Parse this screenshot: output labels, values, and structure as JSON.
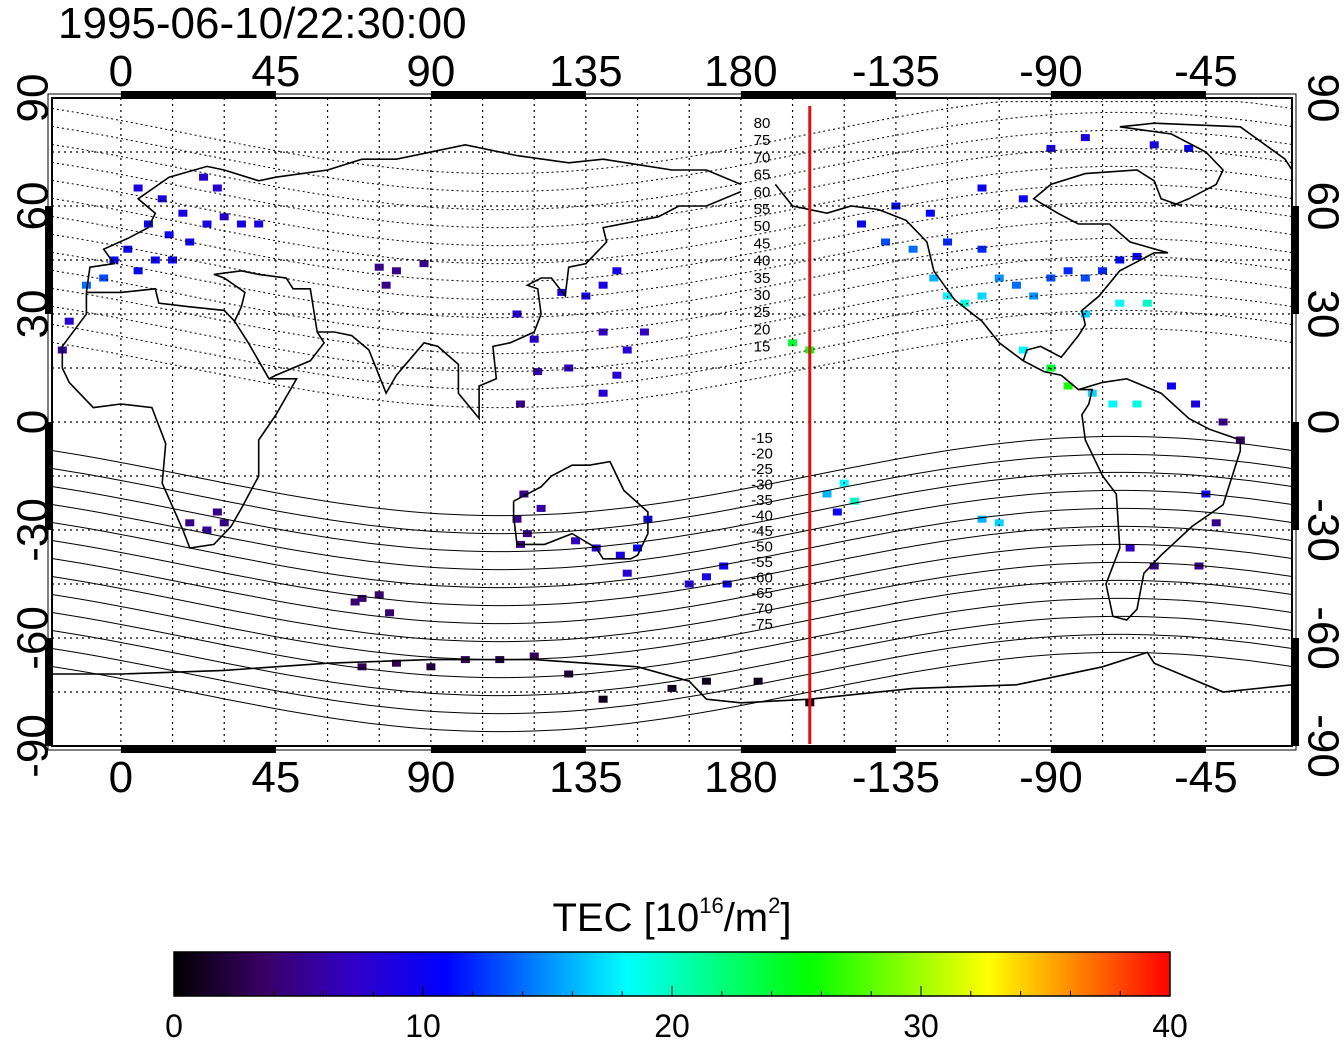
{
  "title": "1995-06-10/22:30:00",
  "map": {
    "top_lon_labels": [
      "0",
      "45",
      "90",
      "135",
      "180",
      "-135",
      "-90",
      "-45"
    ],
    "bottom_lon_labels": [
      "0",
      "45",
      "90",
      "135",
      "180",
      "-135",
      "-90",
      "-45"
    ],
    "left_lat_labels": [
      "90",
      "60",
      "30",
      "0",
      "-30",
      "-60",
      "-90"
    ],
    "right_lat_labels": [
      "90",
      "60",
      "30",
      "0",
      "-30",
      "-60",
      "-90"
    ],
    "contour_labels_north": [
      "80",
      "75",
      "70",
      "65",
      "60",
      "55",
      "50",
      "45",
      "40",
      "35",
      "30",
      "25",
      "20",
      "15"
    ],
    "contour_labels_south": [
      "-15",
      "-20",
      "-25",
      "-30",
      "-35",
      "-40",
      "-45",
      "-50",
      "-55",
      "-60",
      "-65",
      "-70",
      "-75"
    ],
    "red_line_lon": 200
  },
  "colorbar": {
    "label": "TEC  [10",
    "label_exp": "16",
    "label_unit": "/m",
    "label_unit_exp": "2",
    "label_end": "]",
    "ticks": [
      "0",
      "10",
      "20",
      "30",
      "40"
    ],
    "min": 0,
    "max": 40,
    "colors": [
      "#000000",
      "#3a0066",
      "#3000c8",
      "#0000ff",
      "#0080ff",
      "#00ffff",
      "#00ff80",
      "#00ff00",
      "#80ff00",
      "#ffff00",
      "#ff8000",
      "#ff0000"
    ]
  },
  "chart_data": {
    "type": "scatter",
    "title": "1995-06-10/22:30:00",
    "xlabel": "",
    "ylabel": "",
    "xlim": [
      -20,
      340
    ],
    "ylim": [
      -90,
      90
    ],
    "colorbar_label": "TEC [10^16/m^2]",
    "colorbar_range": [
      0,
      40
    ],
    "points": [
      {
        "lon": 5,
        "lat": 65,
        "tec": 9
      },
      {
        "lon": 12,
        "lat": 62,
        "tec": 9
      },
      {
        "lon": 18,
        "lat": 58,
        "tec": 9
      },
      {
        "lon": 8,
        "lat": 55,
        "tec": 10
      },
      {
        "lon": 14,
        "lat": 52,
        "tec": 10
      },
      {
        "lon": 20,
        "lat": 50,
        "tec": 10
      },
      {
        "lon": 25,
        "lat": 55,
        "tec": 9
      },
      {
        "lon": 30,
        "lat": 57,
        "tec": 8
      },
      {
        "lon": 35,
        "lat": 55,
        "tec": 9
      },
      {
        "lon": 40,
        "lat": 55,
        "tec": 9
      },
      {
        "lon": 2,
        "lat": 48,
        "tec": 10
      },
      {
        "lon": -2,
        "lat": 45,
        "tec": 11
      },
      {
        "lon": 5,
        "lat": 42,
        "tec": 11
      },
      {
        "lon": -5,
        "lat": 40,
        "tec": 13
      },
      {
        "lon": -10,
        "lat": 38,
        "tec": 14
      },
      {
        "lon": 10,
        "lat": 45,
        "tec": 10
      },
      {
        "lon": 15,
        "lat": 45,
        "tec": 10
      },
      {
        "lon": -15,
        "lat": 28,
        "tec": 8
      },
      {
        "lon": -17,
        "lat": 20,
        "tec": 6
      },
      {
        "lon": 24,
        "lat": 68,
        "tec": 8
      },
      {
        "lon": 28,
        "lat": 65,
        "tec": 8
      },
      {
        "lon": 75,
        "lat": 43,
        "tec": 5
      },
      {
        "lon": 80,
        "lat": 42,
        "tec": 5
      },
      {
        "lon": 88,
        "lat": 44,
        "tec": 5
      },
      {
        "lon": 77,
        "lat": 38,
        "tec": 5
      },
      {
        "lon": 115,
        "lat": 30,
        "tec": 8
      },
      {
        "lon": 120,
        "lat": 23,
        "tec": 8
      },
      {
        "lon": 121,
        "lat": 14,
        "tec": 6
      },
      {
        "lon": 116,
        "lat": 5,
        "tec": 5
      },
      {
        "lon": 128,
        "lat": 36,
        "tec": 9
      },
      {
        "lon": 135,
        "lat": 35,
        "tec": 9
      },
      {
        "lon": 140,
        "lat": 38,
        "tec": 9
      },
      {
        "lon": 144,
        "lat": 42,
        "tec": 9
      },
      {
        "lon": 140,
        "lat": 25,
        "tec": 7
      },
      {
        "lon": 144,
        "lat": 13,
        "tec": 8
      },
      {
        "lon": 147,
        "lat": 20,
        "tec": 8
      },
      {
        "lon": 152,
        "lat": 25,
        "tec": 7
      },
      {
        "lon": 130,
        "lat": 15,
        "tec": 7
      },
      {
        "lon": 140,
        "lat": 8,
        "tec": 8
      },
      {
        "lon": 28,
        "lat": -25,
        "tec": 5
      },
      {
        "lon": 30,
        "lat": -28,
        "tec": 5
      },
      {
        "lon": 20,
        "lat": -28,
        "tec": 5
      },
      {
        "lon": 25,
        "lat": -30,
        "tec": 6
      },
      {
        "lon": 117,
        "lat": -20,
        "tec": 5
      },
      {
        "lon": 115,
        "lat": -27,
        "tec": 5
      },
      {
        "lon": 118,
        "lat": -31,
        "tec": 5
      },
      {
        "lon": 116,
        "lat": -34,
        "tec": 5
      },
      {
        "lon": 122,
        "lat": -24,
        "tec": 6
      },
      {
        "lon": 132,
        "lat": -33,
        "tec": 7
      },
      {
        "lon": 138,
        "lat": -35,
        "tec": 8
      },
      {
        "lon": 145,
        "lat": -37,
        "tec": 9
      },
      {
        "lon": 150,
        "lat": -35,
        "tec": 11
      },
      {
        "lon": 147,
        "lat": -42,
        "tec": 8
      },
      {
        "lon": 153,
        "lat": -27,
        "tec": 10
      },
      {
        "lon": 170,
        "lat": -43,
        "tec": 9
      },
      {
        "lon": 175,
        "lat": -40,
        "tec": 10
      },
      {
        "lon": 176,
        "lat": -45,
        "tec": 10
      },
      {
        "lon": 165,
        "lat": -45,
        "tec": 8
      },
      {
        "lon": 70,
        "lat": -49,
        "tec": 4
      },
      {
        "lon": 75,
        "lat": -48,
        "tec": 4
      },
      {
        "lon": 78,
        "lat": -53,
        "tec": 4
      },
      {
        "lon": 68,
        "lat": -50,
        "tec": 4
      },
      {
        "lon": 70,
        "lat": -68,
        "tec": 3
      },
      {
        "lon": 80,
        "lat": -67,
        "tec": 3
      },
      {
        "lon": 90,
        "lat": -68,
        "tec": 2
      },
      {
        "lon": 100,
        "lat": -66,
        "tec": 3
      },
      {
        "lon": 110,
        "lat": -66,
        "tec": 2
      },
      {
        "lon": 120,
        "lat": -65,
        "tec": 3
      },
      {
        "lon": 130,
        "lat": -70,
        "tec": 2
      },
      {
        "lon": 140,
        "lat": -77,
        "tec": 1
      },
      {
        "lon": 160,
        "lat": -74,
        "tec": 1
      },
      {
        "lon": 170,
        "lat": -72,
        "tec": 1
      },
      {
        "lon": 185,
        "lat": -72,
        "tec": 1
      },
      {
        "lon": 200,
        "lat": -78,
        "tec": 1
      },
      {
        "lon": 195,
        "lat": 22,
        "tec": 24
      },
      {
        "lon": 200,
        "lat": 20,
        "tec": 26
      },
      {
        "lon": 205,
        "lat": -20,
        "tec": 16
      },
      {
        "lon": 210,
        "lat": -17,
        "tec": 18
      },
      {
        "lon": 213,
        "lat": -22,
        "tec": 20
      },
      {
        "lon": 208,
        "lat": -25,
        "tec": 10
      },
      {
        "lon": 215,
        "lat": 55,
        "tec": 10
      },
      {
        "lon": 225,
        "lat": 60,
        "tec": 11
      },
      {
        "lon": 235,
        "lat": 58,
        "tec": 11
      },
      {
        "lon": 222,
        "lat": 50,
        "tec": 13
      },
      {
        "lon": 230,
        "lat": 48,
        "tec": 14
      },
      {
        "lon": 240,
        "lat": 50,
        "tec": 12
      },
      {
        "lon": 250,
        "lat": 48,
        "tec": 12
      },
      {
        "lon": 236,
        "lat": 40,
        "tec": 16
      },
      {
        "lon": 240,
        "lat": 35,
        "tec": 18
      },
      {
        "lon": 245,
        "lat": 33,
        "tec": 19
      },
      {
        "lon": 250,
        "lat": 35,
        "tec": 17
      },
      {
        "lon": 255,
        "lat": 40,
        "tec": 15
      },
      {
        "lon": 260,
        "lat": 38,
        "tec": 14
      },
      {
        "lon": 265,
        "lat": 35,
        "tec": 15
      },
      {
        "lon": 270,
        "lat": 40,
        "tec": 13
      },
      {
        "lon": 275,
        "lat": 42,
        "tec": 12
      },
      {
        "lon": 280,
        "lat": 40,
        "tec": 13
      },
      {
        "lon": 285,
        "lat": 42,
        "tec": 12
      },
      {
        "lon": 290,
        "lat": 45,
        "tec": 11
      },
      {
        "lon": 295,
        "lat": 46,
        "tec": 10
      },
      {
        "lon": 280,
        "lat": 30,
        "tec": 17
      },
      {
        "lon": 290,
        "lat": 33,
        "tec": 18
      },
      {
        "lon": 298,
        "lat": 33,
        "tec": 20
      },
      {
        "lon": 262,
        "lat": 20,
        "tec": 18
      },
      {
        "lon": 270,
        "lat": 15,
        "tec": 24
      },
      {
        "lon": 275,
        "lat": 10,
        "tec": 26
      },
      {
        "lon": 282,
        "lat": 8,
        "tec": 17
      },
      {
        "lon": 288,
        "lat": 5,
        "tec": 18
      },
      {
        "lon": 295,
        "lat": 5,
        "tec": 19
      },
      {
        "lon": 305,
        "lat": 10,
        "tec": 10
      },
      {
        "lon": 312,
        "lat": 5,
        "tec": 9
      },
      {
        "lon": 320,
        "lat": 0,
        "tec": 5
      },
      {
        "lon": 325,
        "lat": -5,
        "tec": 4
      },
      {
        "lon": 315,
        "lat": -20,
        "tec": 10
      },
      {
        "lon": 318,
        "lat": -28,
        "tec": 5
      },
      {
        "lon": 313,
        "lat": -40,
        "tec": 5
      },
      {
        "lon": 300,
        "lat": -40,
        "tec": 5
      },
      {
        "lon": 293,
        "lat": -35,
        "tec": 7
      },
      {
        "lon": 250,
        "lat": -27,
        "tec": 16
      },
      {
        "lon": 255,
        "lat": -28,
        "tec": 17
      },
      {
        "lon": 270,
        "lat": 76,
        "tec": 9
      },
      {
        "lon": 280,
        "lat": 79,
        "tec": 9
      },
      {
        "lon": 300,
        "lat": 77,
        "tec": 9
      },
      {
        "lon": 310,
        "lat": 76,
        "tec": 10
      },
      {
        "lon": 250,
        "lat": 65,
        "tec": 10
      },
      {
        "lon": 262,
        "lat": 62,
        "tec": 10
      }
    ]
  }
}
